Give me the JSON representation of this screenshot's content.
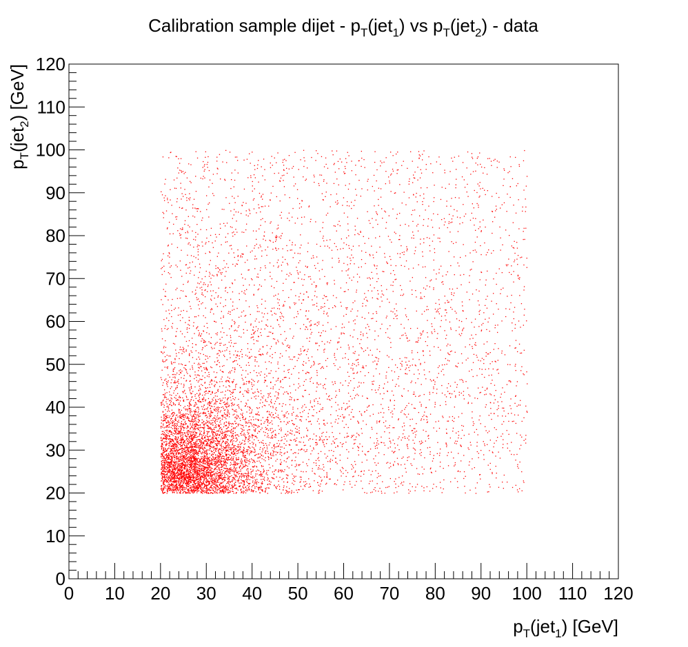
{
  "chart_data": {
    "type": "scatter",
    "title": {
      "parts": [
        {
          "text": "Calibration sample dijet - p"
        },
        {
          "text": "T",
          "sub": true
        },
        {
          "text": "(jet"
        },
        {
          "text": "1",
          "sub": true
        },
        {
          "text": ") vs p"
        },
        {
          "text": "T",
          "sub": true
        },
        {
          "text": "(jet"
        },
        {
          "text": "2",
          "sub": true
        },
        {
          "text": ") - data"
        }
      ]
    },
    "xlabel": {
      "parts": [
        {
          "text": "p"
        },
        {
          "text": "T",
          "sub": true
        },
        {
          "text": "(jet"
        },
        {
          "text": "1",
          "sub": true
        },
        {
          "text": ") [GeV]"
        }
      ]
    },
    "ylabel": {
      "parts": [
        {
          "text": "p"
        },
        {
          "text": "T",
          "sub": true
        },
        {
          "text": "(jet"
        },
        {
          "text": "2",
          "sub": true
        },
        {
          "text": ") [GeV]"
        }
      ]
    },
    "xlim": [
      0,
      120
    ],
    "ylim": [
      0,
      120
    ],
    "xticks": [
      "0",
      "10",
      "20",
      "30",
      "40",
      "50",
      "60",
      "70",
      "80",
      "90",
      "100",
      "110",
      "120"
    ],
    "yticks": [
      "0",
      "10",
      "20",
      "30",
      "40",
      "50",
      "60",
      "70",
      "80",
      "90",
      "100",
      "110",
      "120"
    ],
    "grid": false,
    "legend": "none",
    "marker_color": "#ff0000",
    "series": [
      {
        "distribution": {
          "x_range": [
            20,
            100
          ],
          "y_range": [
            20,
            100
          ],
          "density_peak": [
            25,
            25
          ],
          "regions": [
            {
              "x": [
                20,
                30
              ],
              "y": [
                20,
                30
              ],
              "relative_density": 1.0
            },
            {
              "x": [
                20,
                40
              ],
              "y": [
                20,
                45
              ],
              "relative_density": 0.5
            },
            {
              "x": [
                20,
                60
              ],
              "y": [
                20,
                60
              ],
              "relative_density": 0.15
            },
            {
              "x": [
                20,
                100
              ],
              "y": [
                20,
                100
              ],
              "relative_density": 0.03
            }
          ]
        }
      }
    ]
  }
}
